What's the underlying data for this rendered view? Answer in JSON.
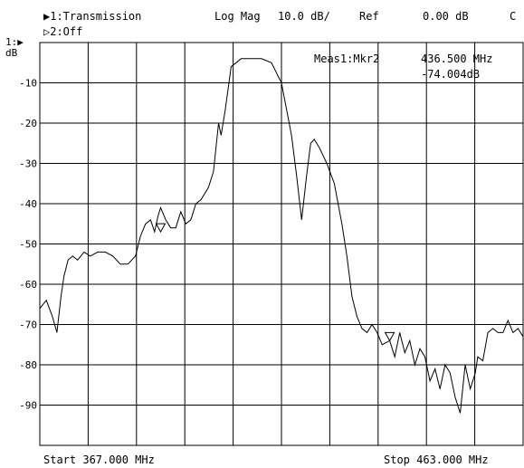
{
  "header": {
    "trace1_label": "▶1:Transmission",
    "format_label": "Log Mag",
    "scale_label": "10.0 dB/",
    "ref_label": "Ref",
    "ref_value": "0.00 dB",
    "channel_flag": "C",
    "trace2_label": "▷2:Off"
  },
  "axis": {
    "trace_ref_marker": "1:▶",
    "unit": "dB"
  },
  "marker": {
    "label": "Meas1:Mkr2",
    "frequency": "436.500 MHz",
    "value": "-74.004dB"
  },
  "footer": {
    "start_label": "Start 367.000 MHz",
    "stop_label": "Stop 463.000 MHz"
  },
  "chart_data": {
    "type": "line",
    "title": "",
    "xlabel": "",
    "ylabel": "dB",
    "xlim": [
      367.0,
      463.0
    ],
    "ylim": [
      -100,
      0
    ],
    "grid": true,
    "y_ticks": [
      -10,
      -20,
      -30,
      -40,
      -50,
      -60,
      -70,
      -80,
      -90
    ],
    "y_tick_labels": [
      "-10",
      "-20",
      "-30",
      "-40",
      "-50",
      "-60",
      "-70",
      "-80",
      "-90"
    ],
    "trace_color": "#000000",
    "series": [
      {
        "x": [
          367.0,
          368.3,
          369.5,
          370.4,
          371.2,
          371.8,
          372.6,
          373.5,
          374.5,
          375.8,
          377.0,
          378.5,
          380.0,
          381.5,
          383.0,
          384.5,
          386.0,
          387.0,
          388.0,
          389.0,
          389.8,
          390.5,
          391.0,
          392.0,
          393.0,
          394.0,
          395.0,
          396.0,
          397.0,
          398.0,
          399.0,
          400.5,
          401.5,
          402.5,
          403.0,
          403.8,
          405.0,
          407.0,
          409.0,
          411.0,
          413.0,
          415.0,
          417.0,
          418.0,
          419.0,
          420.0,
          420.8,
          421.5,
          422.5,
          424.0,
          425.5,
          427.0,
          428.0,
          429.0,
          430.0,
          431.0,
          432.0,
          433.0,
          434.0,
          435.0,
          436.5,
          437.5,
          438.5,
          439.5,
          440.5,
          441.5,
          442.5,
          443.5,
          444.5,
          445.5,
          446.5,
          447.5,
          448.5,
          449.5,
          450.5,
          451.5,
          452.5,
          453.5,
          454.0,
          455.0,
          456.0,
          457.0,
          458.0,
          459.0,
          460.0,
          461.0,
          462.0,
          463.0
        ],
        "values": [
          -66,
          -64,
          -68,
          -72,
          -63,
          -58,
          -54,
          -53,
          -54,
          -52,
          -53,
          -52,
          -52,
          -53,
          -55,
          -55,
          -53,
          -48,
          -45,
          -44,
          -47,
          -43,
          -41,
          -44,
          -46,
          -46,
          -42,
          -45,
          -44,
          -40,
          -39,
          -36,
          -32,
          -20,
          -23,
          -17,
          -6,
          -4,
          -4,
          -4,
          -5,
          -10,
          -23,
          -33,
          -44,
          -33,
          -25,
          -24,
          -26,
          -30,
          -35,
          -45,
          -53,
          -63,
          -68,
          -71,
          -72,
          -70,
          -72,
          -75,
          -74,
          -78,
          -72,
          -77,
          -74,
          -80,
          -76,
          -78,
          -84,
          -81,
          -86,
          -80,
          -82,
          -88,
          -92,
          -80,
          -86,
          -82,
          -78,
          -79,
          -72,
          -71,
          -72,
          -72,
          -69,
          -72,
          -71,
          -73
        ]
      }
    ]
  }
}
